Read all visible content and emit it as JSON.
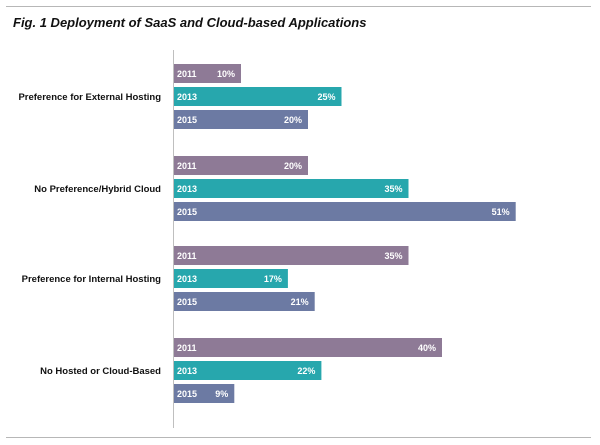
{
  "chart_data": {
    "type": "bar",
    "orientation": "horizontal",
    "title": "Fig. 1 Deployment of SaaS and Cloud-based Applications",
    "categories": [
      "Preference for External Hosting",
      "No Preference/Hybrid Cloud",
      "Preference for Internal Hosting",
      "No Hosted or Cloud-Based"
    ],
    "series": [
      {
        "name": "2011",
        "color": "#8e7a96",
        "values": [
          10,
          20,
          35,
          40
        ]
      },
      {
        "name": "2013",
        "color": "#27a7ad",
        "values": [
          25,
          35,
          17,
          22
        ]
      },
      {
        "name": "2015",
        "color": "#6c7aa3",
        "values": [
          20,
          51,
          21,
          9
        ]
      }
    ],
    "value_suffix": "%",
    "grid": false,
    "legend": "none"
  }
}
